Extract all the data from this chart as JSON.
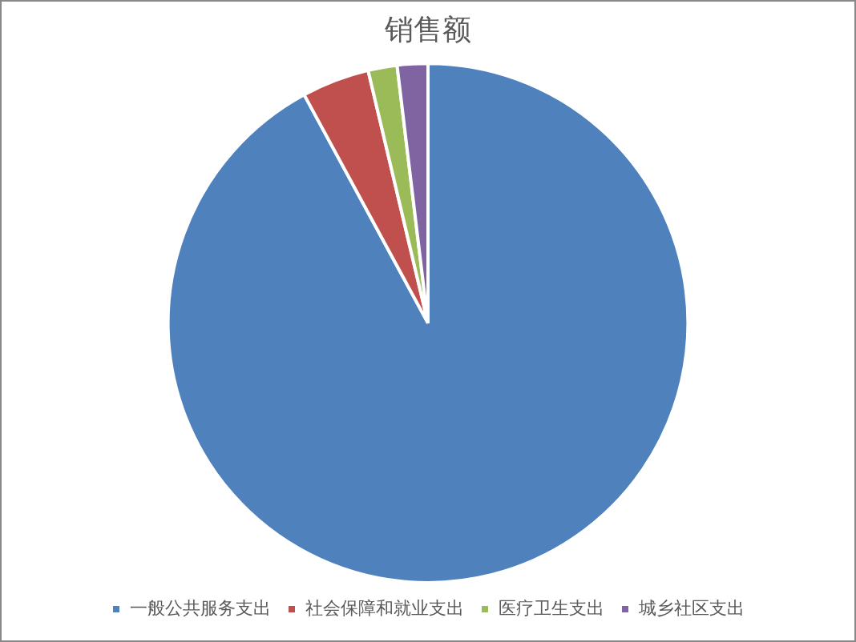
{
  "chart_data": {
    "type": "pie",
    "title": "销售额",
    "categories": [
      "一般公共服务支出",
      "社会保障和就业支出",
      "医疗卫生支出",
      "城乡社区支出"
    ],
    "values": [
      92.1,
      4.2,
      1.8,
      1.9
    ],
    "colors": [
      "#4f81bd",
      "#c0504d",
      "#9bbb59",
      "#8064a2"
    ],
    "legend": "bottom"
  }
}
